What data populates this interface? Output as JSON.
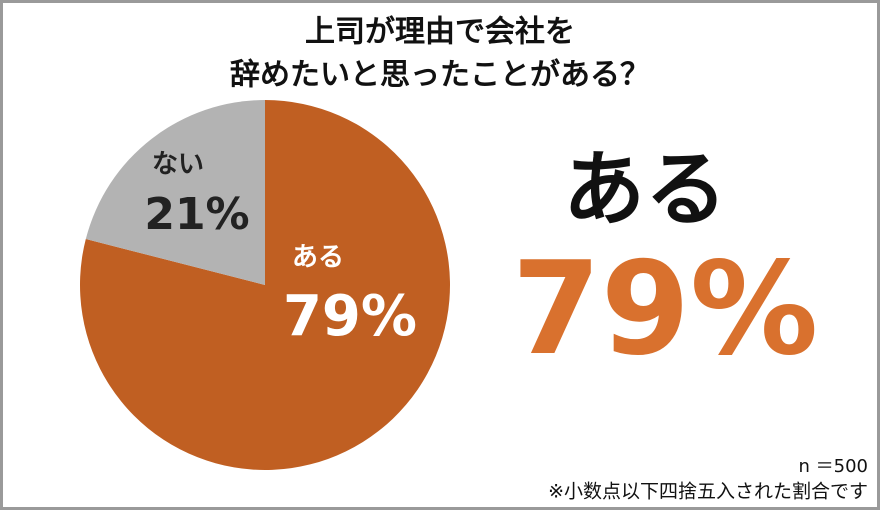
{
  "chart_data": {
    "type": "pie",
    "title": [
      "上司が理由で会社を",
      "辞めたいと思ったことがある？"
    ],
    "categories": [
      "ある",
      "ない"
    ],
    "values": [
      79,
      21
    ],
    "value_labels": [
      "79%",
      "21%"
    ],
    "colors": [
      "#c05f22",
      "#b3b3b3"
    ],
    "label_colors": [
      "#ffffff",
      "#222222"
    ],
    "callout_color": "#d9712e",
    "sample_size": "n ＝500",
    "footnote": "※小数点以下四捨五入された割合です"
  }
}
